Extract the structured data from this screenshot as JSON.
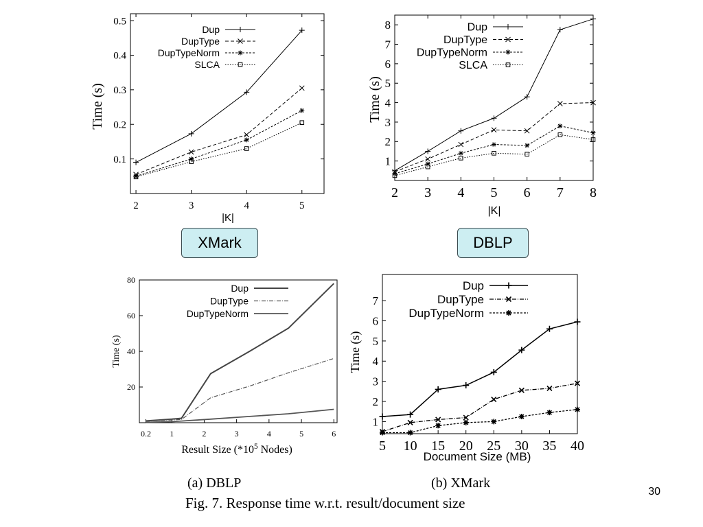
{
  "labels": {
    "xmark_box": "XMark",
    "dblp_box": "DBLP"
  },
  "captions": {
    "a": "(a)  DBLP",
    "b": "(b)  XMark",
    "fig": "Fig. 7.    Response time w.r.t. result/document size"
  },
  "page_number": "30",
  "chart_data": [
    {
      "type": "line",
      "xlabel": "|K|",
      "ylabel": "Time (s)",
      "x": [
        2,
        3,
        4,
        5
      ],
      "xticks": [
        2,
        3,
        4,
        5
      ],
      "yticks": [
        0.1,
        0.2,
        0.3,
        0.4,
        0.5
      ],
      "xlim": [
        1.9,
        5.4
      ],
      "ylim": [
        0.0,
        0.52
      ],
      "legend": "top-right",
      "series": [
        {
          "name": "Dup",
          "values": [
            0.09,
            0.173,
            0.293,
            0.472
          ]
        },
        {
          "name": "DupType",
          "values": [
            0.055,
            0.12,
            0.17,
            0.305
          ]
        },
        {
          "name": "DupTypeNorm",
          "values": [
            0.05,
            0.1,
            0.155,
            0.24
          ]
        },
        {
          "name": "SLCA",
          "values": [
            0.048,
            0.092,
            0.13,
            0.205
          ]
        }
      ]
    },
    {
      "type": "line",
      "xlabel": "|K|",
      "ylabel": "Time (s)",
      "x": [
        2,
        3,
        4,
        5,
        6,
        7,
        8
      ],
      "xticks": [
        2,
        3,
        4,
        5,
        6,
        7,
        8
      ],
      "yticks": [
        1,
        2,
        3,
        4,
        5,
        6,
        7,
        8
      ],
      "xlim": [
        2,
        8
      ],
      "ylim": [
        0,
        8.5
      ],
      "legend": "top-right",
      "series": [
        {
          "name": "Dup",
          "values": [
            0.5,
            1.5,
            2.55,
            3.2,
            4.3,
            7.75,
            8.3
          ]
        },
        {
          "name": "DupType",
          "values": [
            0.45,
            1.1,
            1.85,
            2.6,
            2.55,
            3.95,
            4.0
          ]
        },
        {
          "name": "DupTypeNorm",
          "values": [
            0.35,
            0.85,
            1.4,
            1.85,
            1.8,
            2.8,
            2.45
          ]
        },
        {
          "name": "SLCA",
          "values": [
            0.25,
            0.7,
            1.15,
            1.4,
            1.35,
            2.35,
            2.1
          ]
        }
      ]
    },
    {
      "type": "line",
      "xlabel": "Result Size (*10",
      "xlabel_sup": "5",
      "xlabel_tail": " Nodes)",
      "ylabel": "Time (s)",
      "x": [
        0.2,
        0.6,
        1.0,
        1.3,
        2.2,
        3.4,
        4.6,
        6.0
      ],
      "xticks": [
        0.2,
        1,
        2,
        3,
        4,
        5,
        6
      ],
      "yticks": [
        20,
        40,
        60,
        80
      ],
      "xlim": [
        0,
        6.1
      ],
      "ylim": [
        0,
        80
      ],
      "legend": "top-right",
      "series": [
        {
          "name": "Dup",
          "values": [
            1.0,
            1.5,
            2.0,
            2.5,
            27.5,
            40.0,
            53.0,
            78.0
          ]
        },
        {
          "name": "DupType",
          "values": [
            0.8,
            1.2,
            1.5,
            1.8,
            14.0,
            20.5,
            28.0,
            36.0
          ]
        },
        {
          "name": "DupTypeNorm",
          "values": [
            0.2,
            0.4,
            0.6,
            0.9,
            2.0,
            3.5,
            5.0,
            7.5
          ]
        }
      ]
    },
    {
      "type": "line",
      "xlabel": "Document Size (MB)",
      "ylabel": "Time (s)",
      "x": [
        5,
        10,
        15,
        20,
        25,
        30,
        35,
        40
      ],
      "xticks": [
        5,
        10,
        15,
        20,
        25,
        30,
        35,
        40
      ],
      "yticks": [
        1,
        2,
        3,
        4,
        5,
        6,
        7
      ],
      "xlim": [
        5,
        40
      ],
      "ylim": [
        0.4,
        8.3
      ],
      "legend": "top-right",
      "series": [
        {
          "name": "Dup",
          "values": [
            1.25,
            1.35,
            2.6,
            2.8,
            3.45,
            4.55,
            5.6,
            5.95
          ]
        },
        {
          "name": "DupType",
          "values": [
            0.5,
            0.95,
            1.1,
            1.2,
            2.1,
            2.55,
            2.65,
            2.9
          ]
        },
        {
          "name": "DupTypeNorm",
          "values": [
            0.45,
            0.45,
            0.8,
            0.95,
            1.0,
            1.25,
            1.45,
            1.6
          ]
        }
      ]
    }
  ]
}
